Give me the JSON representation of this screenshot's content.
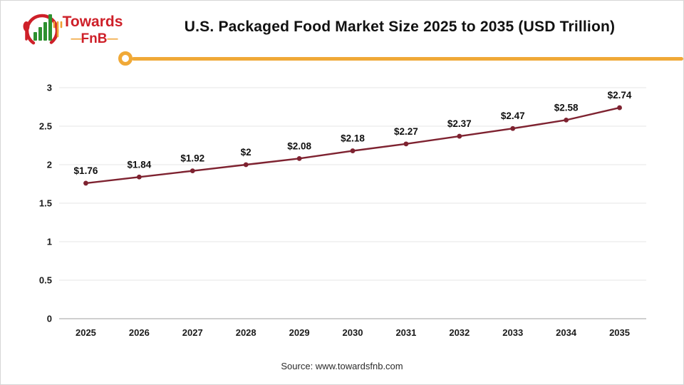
{
  "header": {
    "logo": {
      "line1": "Towards",
      "line2": "FnB",
      "dash": "—"
    },
    "title": "U.S. Packaged Food Market Size 2025 to 2035 (USD Trillion)"
  },
  "chart_data": {
    "type": "line",
    "title": "U.S. Packaged Food Market Size 2025 to 2035 (USD Trillion)",
    "categories": [
      "2025",
      "2026",
      "2027",
      "2028",
      "2029",
      "2030",
      "2031",
      "2032",
      "2033",
      "2034",
      "2035"
    ],
    "values": [
      1.76,
      1.84,
      1.92,
      2,
      2.08,
      2.18,
      2.27,
      2.37,
      2.47,
      2.58,
      2.74
    ],
    "point_labels": [
      "$1.76",
      "$1.84",
      "$1.92",
      "$2",
      "$2.08",
      "$2.18",
      "$2.27",
      "$2.37",
      "$2.47",
      "$2.58",
      "$2.74"
    ],
    "xlabel": "",
    "ylabel": "",
    "ylim": [
      0,
      3
    ],
    "yticks": [
      0,
      0.5,
      1,
      1.5,
      2,
      2.5,
      3
    ],
    "ytick_labels": [
      "0",
      "0.5",
      "1",
      "1.5",
      "2",
      "2.5",
      "3"
    ],
    "grid": true,
    "legend": "none",
    "line_color": "#7E2230",
    "marker": "circle"
  },
  "footer": {
    "source": "Source: www.towardsfnb.com"
  },
  "colors": {
    "accent_yellow": "#F0A937",
    "brand_red": "#CE2029",
    "brand_green": "#2E9130",
    "series_maroon": "#7E2230",
    "gridline": "#E6E6E6",
    "axis": "#BFBFBF"
  }
}
